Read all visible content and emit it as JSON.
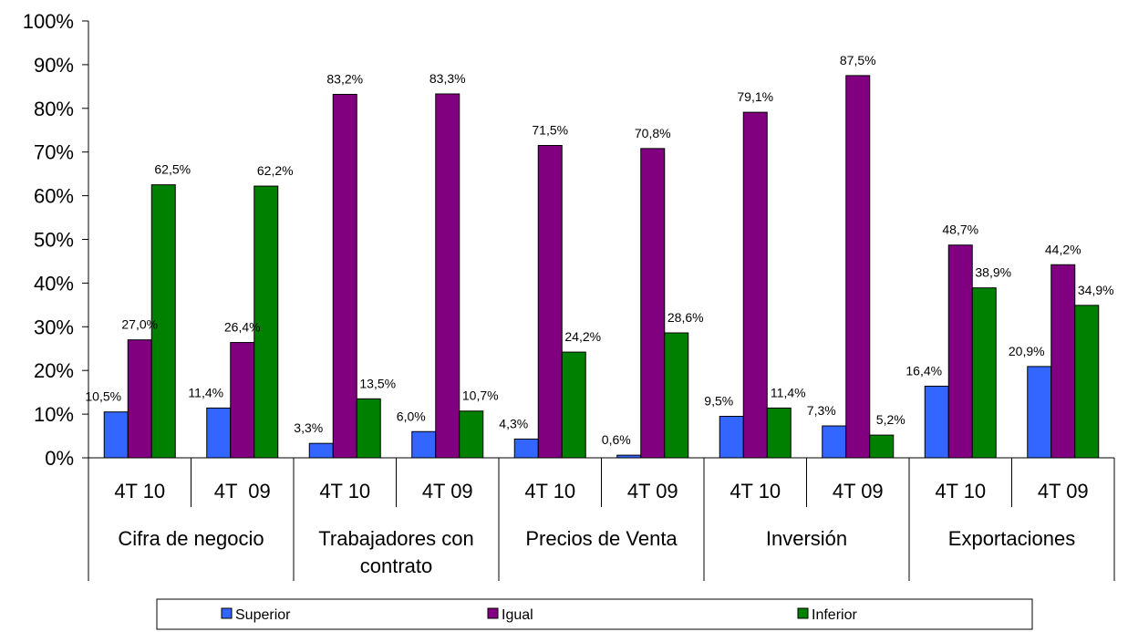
{
  "chart_data": {
    "type": "bar",
    "ylim": [
      0,
      100
    ],
    "y_unit": "%",
    "yticks": [
      "0%",
      "10%",
      "20%",
      "30%",
      "40%",
      "50%",
      "60%",
      "70%",
      "80%",
      "90%",
      "100%"
    ],
    "categories": [
      "4T 10",
      "4T  09",
      "4T 10",
      "4T 09",
      "4T 10",
      "4T 09",
      "4T 10",
      "4T 09",
      "4T 10",
      "4T 09"
    ],
    "groups": [
      {
        "lines": [
          "Cifra de negocio"
        ]
      },
      {
        "lines": [
          "Trabajadores con",
          "contrato"
        ]
      },
      {
        "lines": [
          "Precios de Venta"
        ]
      },
      {
        "lines": [
          "Inversión"
        ]
      },
      {
        "lines": [
          "Exportaciones"
        ]
      }
    ],
    "series": [
      {
        "name": "Superior",
        "color": "#3366ff",
        "values": [
          10.5,
          11.4,
          3.3,
          6.0,
          4.3,
          0.6,
          9.5,
          7.3,
          16.4,
          20.9
        ],
        "labels": [
          "10,5%",
          "11,4%",
          "3,3%",
          "6,0%",
          "4,3%",
          "0,6%",
          "9,5%",
          "7,3%",
          "16,4%",
          "20,9%"
        ]
      },
      {
        "name": "Igual",
        "color": "#800080",
        "values": [
          27.0,
          26.4,
          83.2,
          83.3,
          71.5,
          70.8,
          79.1,
          87.5,
          48.7,
          44.2
        ],
        "labels": [
          "27,0%",
          "26,4%",
          "83,2%",
          "83,3%",
          "71,5%",
          "70,8%",
          "79,1%",
          "87,5%",
          "48,7%",
          "44,2%"
        ]
      },
      {
        "name": "Inferior",
        "color": "#008000",
        "values": [
          62.5,
          62.2,
          13.5,
          10.7,
          24.2,
          28.6,
          11.4,
          5.2,
          38.9,
          34.9
        ],
        "labels": [
          "62,5%",
          "62,2%",
          "13,5%",
          "10,7%",
          "24,2%",
          "28,6%",
          "11,4%",
          "5,2%",
          "38,9%",
          "34,9%"
        ]
      }
    ],
    "legend": {
      "position": "bottom"
    }
  }
}
